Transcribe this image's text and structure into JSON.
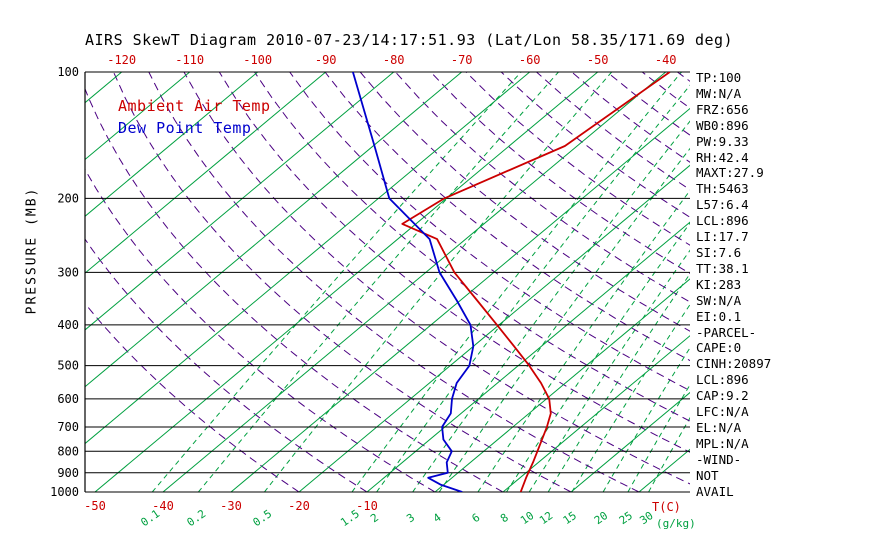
{
  "colors": {
    "air_temp": "#cc0000",
    "dew_point": "#0000cd",
    "isotherm": "#00a040",
    "mixing_ratio": "#00a040",
    "dry_adiabat": "#4b0082",
    "axis": "#000000",
    "title_text": "#000000",
    "background": "#ffffff"
  },
  "stats_panel": {
    "lines": [
      "TP:100",
      "MW:N/A",
      "FRZ:656",
      "WB0:896",
      "PW:9.33",
      "RH:42.4",
      "MAXT:27.9",
      "TH:5463",
      "L57:6.4",
      "LCL:896",
      "LI:17.7",
      "SI:7.6",
      "TT:38.1",
      "KI:283",
      "SW:N/A",
      "EI:0.1",
      "-PARCEL-",
      "CAPE:0",
      "CINH:20897",
      "LCL:896",
      "CAP:9.2",
      "LFC:N/A",
      "EL:N/A",
      "MPL:N/A",
      "-WIND-",
      "NOT",
      "AVAIL"
    ]
  },
  "chart_data": {
    "type": "line",
    "variant": "skew-t-log-p",
    "title": "AIRS SkewT Diagram 2010-07-23/14:17:51.93 (Lat/Lon 58.35/171.69 deg)",
    "ylabel": "PRESSURE (MB)",
    "xlabel": "T(C)",
    "x2label": "(g/kg)",
    "y_scale": "log",
    "ylim_mb": [
      100,
      1000
    ],
    "y_ticks_mb": [
      100,
      200,
      300,
      400,
      500,
      600,
      700,
      800,
      900,
      1000
    ],
    "x_top_ticks_c": [
      -120,
      -110,
      -100,
      -90,
      -80,
      -70,
      -60,
      -50,
      -40
    ],
    "x_bottom_ticks_c": [
      -50,
      -40,
      -30,
      -20,
      -10
    ],
    "mixing_ratio_ticks_gkg": [
      0.1,
      0.2,
      0.5,
      1.5,
      2,
      3,
      4,
      6,
      8,
      10,
      12,
      15,
      20,
      25,
      30
    ],
    "grid": {
      "isotherms_c": {
        "min": -130,
        "max": 40,
        "step": 10
      },
      "dry_adiabats_theta_c": {
        "min": -20,
        "max": 190,
        "step": 10
      }
    },
    "point_format": [
      "pressure_mb",
      "temp_c"
    ],
    "series": [
      {
        "name": "Ambient Air Temp",
        "color_key": "air_temp",
        "points": [
          [
            1000,
            12.6
          ],
          [
            925,
            10.9
          ],
          [
            850,
            9.2
          ],
          [
            800,
            7.9
          ],
          [
            700,
            5.0
          ],
          [
            650,
            3.2
          ],
          [
            600,
            0.4
          ],
          [
            550,
            -3.6
          ],
          [
            500,
            -8.4
          ],
          [
            450,
            -14.0
          ],
          [
            400,
            -20.3
          ],
          [
            350,
            -27.5
          ],
          [
            300,
            -35.8
          ],
          [
            250,
            -44.2
          ],
          [
            230,
            -52.0
          ],
          [
            200,
            -50.3
          ],
          [
            150,
            -41.8
          ],
          [
            100,
            -39.4
          ]
        ]
      },
      {
        "name": "Dew Point Temp",
        "color_key": "dew_point",
        "points": [
          [
            1000,
            4.0
          ],
          [
            960,
            -0.5
          ],
          [
            925,
            -3.5
          ],
          [
            900,
            -1.5
          ],
          [
            850,
            -3.5
          ],
          [
            800,
            -4.7
          ],
          [
            750,
            -8.0
          ],
          [
            700,
            -10.4
          ],
          [
            650,
            -11.5
          ],
          [
            600,
            -13.9
          ],
          [
            550,
            -16.0
          ],
          [
            500,
            -17.2
          ],
          [
            450,
            -20.0
          ],
          [
            400,
            -24.2
          ],
          [
            350,
            -30.5
          ],
          [
            300,
            -38.0
          ],
          [
            250,
            -45.3
          ],
          [
            200,
            -58.4
          ],
          [
            150,
            -69.8
          ],
          [
            100,
            -86.0
          ]
        ]
      }
    ]
  }
}
